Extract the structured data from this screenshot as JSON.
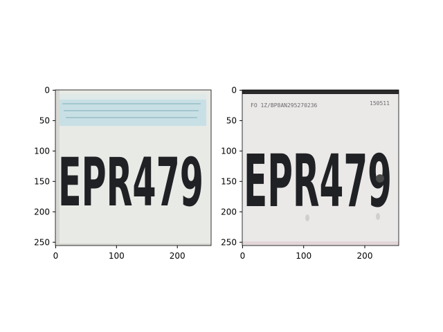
{
  "figure": {
    "panels": [
      {
        "id": "left",
        "image_text": "EPR479",
        "x_ticks": [
          "0",
          "100",
          "200"
        ],
        "y_ticks": [
          "0",
          "50",
          "100",
          "150",
          "200",
          "250"
        ]
      },
      {
        "id": "right",
        "image_text": "EPR479",
        "top_left_print": "FO  1Z/BP8AN295270236",
        "top_right_print": "150511",
        "x_ticks": [
          "0",
          "100",
          "200"
        ],
        "y_ticks": [
          "0",
          "50",
          "100",
          "150",
          "200",
          "250"
        ]
      }
    ]
  },
  "colors": {
    "plate_background_left": "#e9ebe6",
    "plate_background_right": "#ebe8e8",
    "plate_stripe_left": "#c5dfe4",
    "plate_characters": "#202124"
  }
}
